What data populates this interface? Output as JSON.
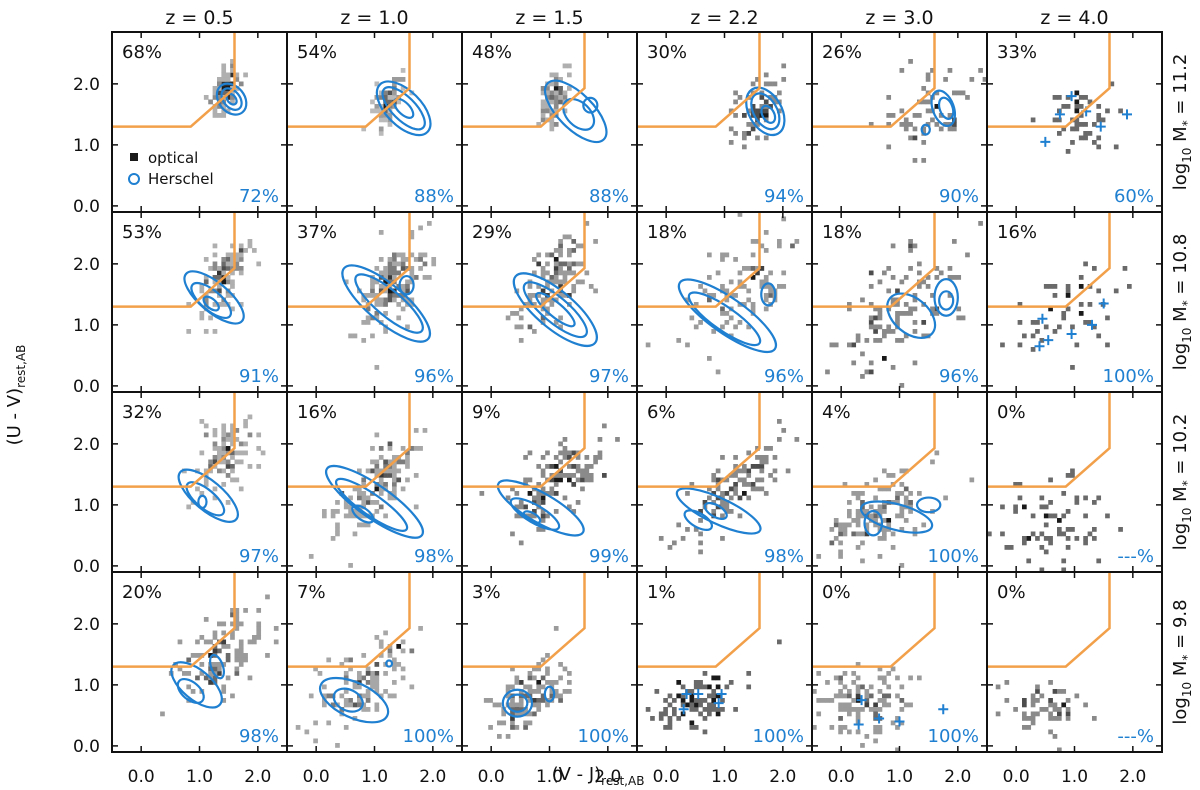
{
  "chart_data": {
    "type": "scatter",
    "layout": "grid",
    "xlabel": "(V - J)",
    "xlabel_sub": "rest,AB",
    "ylabel": "(U - V)",
    "ylabel_sub": "rest,AB",
    "xlim": [
      -0.5,
      2.5
    ],
    "ylim": [
      -0.1,
      2.85
    ],
    "xticks": [
      "0.0",
      "1.0",
      "2.0"
    ],
    "xtick_values": [
      0,
      1,
      2
    ],
    "yticks": [
      "0.0",
      "1.0",
      "2.0"
    ],
    "ytick_values": [
      0,
      1,
      2
    ],
    "columns": [
      "z = 0.5",
      "z = 1.0",
      "z = 1.5",
      "z = 2.2",
      "z = 3.0",
      "z = 4.0"
    ],
    "rows": [
      {
        "prefix": "log",
        "sub": "10",
        "label": " M",
        "label_sub": "*",
        "value": " = 11.2"
      },
      {
        "prefix": "log",
        "sub": "10",
        "label": " M",
        "label_sub": "*",
        "value": " = 10.8"
      },
      {
        "prefix": "log",
        "sub": "10",
        "label": " M",
        "label_sub": "*",
        "value": " = 10.2"
      },
      {
        "prefix": "log",
        "sub": "10",
        "label": " M",
        "label_sub": "*",
        "value": " = 9.8"
      }
    ],
    "legend": {
      "placement": "lower-left of first panel",
      "entries": [
        {
          "marker": "filled-square",
          "label": "optical",
          "color": "#1a1a1a"
        },
        {
          "marker": "open-circle",
          "label": "Herschel",
          "color": "#1f7fd0"
        }
      ]
    },
    "quiescent_region": {
      "color": "#f2a04a",
      "boundary_points": [
        [
          -0.5,
          1.3
        ],
        [
          0.85,
          1.3
        ],
        [
          1.6,
          1.93
        ],
        [
          1.6,
          2.85
        ]
      ]
    },
    "optical_percent": [
      [
        "68%",
        "54%",
        "48%",
        "30%",
        "26%",
        "33%"
      ],
      [
        "53%",
        "37%",
        "29%",
        "18%",
        "18%",
        "16%"
      ],
      [
        "32%",
        "16%",
        "9%",
        "6%",
        "4%",
        "0%"
      ],
      [
        "20%",
        "7%",
        "3%",
        "1%",
        "0%",
        "0%"
      ]
    ],
    "herschel_percent": [
      [
        "72%",
        "88%",
        "88%",
        "94%",
        "90%",
        "60%"
      ],
      [
        "91%",
        "96%",
        "97%",
        "96%",
        "96%",
        "100%"
      ],
      [
        "97%",
        "98%",
        "99%",
        "98%",
        "100%",
        "---%"
      ],
      [
        "98%",
        "100%",
        "100%",
        "100%",
        "100%",
        "---%"
      ]
    ],
    "optical_density": [
      [
        {
          "x": 1.45,
          "y": 1.9,
          "sx": 0.12,
          "sy": 0.2,
          "r": 0.6,
          "n": 50
        },
        {
          "x": 1.35,
          "y": 1.7,
          "sx": 0.25,
          "sy": 0.35,
          "r": 0.6,
          "n": 90
        },
        {
          "x": 1.4,
          "y": 1.75,
          "sx": 0.3,
          "sy": 0.32,
          "r": 0.5,
          "n": 90
        },
        {
          "x": 1.4,
          "y": 1.5,
          "sx": 0.4,
          "sy": 0.35,
          "r": 0.5,
          "n": 110
        },
        {
          "x": 0.85,
          "y": 1.25,
          "sx": 0.45,
          "sy": 0.35,
          "r": 0.3,
          "n": 90
        },
        {
          "x": 1.0,
          "y": 1.4,
          "sx": 0.3,
          "sy": 0.3,
          "r": 0.2,
          "n": 25
        }
      ],
      [
        {
          "x": 1.25,
          "y": 1.75,
          "sx": 0.12,
          "sy": 0.2,
          "r": 0.5,
          "n": 55
        },
        {
          "x": 1.3,
          "y": 1.65,
          "sx": 0.28,
          "sy": 0.38,
          "r": 0.6,
          "n": 140
        },
        {
          "x": 1.0,
          "y": 1.3,
          "sx": 0.4,
          "sy": 0.4,
          "r": 0.7,
          "n": 140
        },
        {
          "x": 0.8,
          "y": 1.05,
          "sx": 0.45,
          "sy": 0.35,
          "r": 0.6,
          "n": 120
        },
        {
          "x": 0.75,
          "y": 0.95,
          "sx": 0.5,
          "sy": 0.5,
          "r": 0.5,
          "n": 110
        },
        {
          "x": 0.55,
          "y": 0.8,
          "sx": 0.3,
          "sy": 0.3,
          "r": 0.3,
          "n": 15
        }
      ],
      [
        {
          "x": 1.1,
          "y": 1.8,
          "sx": 0.12,
          "sy": 0.22,
          "r": 0.5,
          "n": 45
        },
        {
          "x": 1.1,
          "y": 1.7,
          "sx": 0.3,
          "sy": 0.4,
          "r": 0.5,
          "n": 110
        },
        {
          "x": 1.05,
          "y": 1.3,
          "sx": 0.45,
          "sy": 0.4,
          "r": 0.7,
          "n": 130
        },
        {
          "x": 0.6,
          "y": 0.8,
          "sx": 0.35,
          "sy": 0.3,
          "r": 0.6,
          "n": 120
        },
        {
          "x": 0.45,
          "y": 0.7,
          "sx": 0.25,
          "sy": 0.15,
          "r": 0.3,
          "n": 90
        },
        {
          "x": 0.35,
          "y": 0.65,
          "sx": 0.25,
          "sy": 0.2,
          "r": 0.2,
          "n": 70
        }
      ],
      [
        {
          "x": 1.6,
          "y": 1.6,
          "sx": 0.2,
          "sy": 0.25,
          "r": 0.3,
          "n": 50
        },
        {
          "x": 1.15,
          "y": 1.55,
          "sx": 0.5,
          "sy": 0.5,
          "r": 0.6,
          "n": 90
        },
        {
          "x": 1.1,
          "y": 1.2,
          "sx": 0.45,
          "sy": 0.4,
          "r": 0.7,
          "n": 110
        },
        {
          "x": 0.5,
          "y": 0.75,
          "sx": 0.35,
          "sy": 0.25,
          "r": 0.5,
          "n": 90
        },
        {
          "x": 0.35,
          "y": 0.65,
          "sx": 0.25,
          "sy": 0.2,
          "r": 0.3,
          "n": 80
        },
        {
          "x": 0.3,
          "y": 0.6,
          "sx": 0.2,
          "sy": 0.2,
          "r": 0.2,
          "n": 70
        }
      ],
      [
        {
          "x": 1.5,
          "y": 1.5,
          "sx": 0.4,
          "sy": 0.4,
          "r": 0.4,
          "n": 45
        },
        {
          "x": 1.0,
          "y": 1.3,
          "sx": 0.6,
          "sy": 0.5,
          "r": 0.5,
          "n": 110
        },
        {
          "x": 0.6,
          "y": 0.85,
          "sx": 0.45,
          "sy": 0.35,
          "r": 0.3,
          "n": 130
        },
        {
          "x": 0.4,
          "y": 0.7,
          "sx": 0.4,
          "sy": 0.3,
          "r": 0.2,
          "n": 120
        },
        {
          "x": 0.3,
          "y": 0.65,
          "sx": 0.35,
          "sy": 0.25,
          "r": 0.1,
          "n": 100
        },
        {
          "x": 0.25,
          "y": 0.6,
          "sx": 0.3,
          "sy": 0.2,
          "r": 0.1,
          "n": 110
        }
      ],
      [
        {
          "x": 1.2,
          "y": 1.5,
          "sx": 0.3,
          "sy": 0.25,
          "r": 0.2,
          "n": 25
        },
        {
          "x": 0.8,
          "y": 1.1,
          "sx": 0.45,
          "sy": 0.35,
          "r": 0.3,
          "n": 40
        },
        {
          "x": 0.6,
          "y": 0.7,
          "sx": 0.45,
          "sy": 0.35,
          "r": 0.1,
          "n": 70
        },
        {
          "x": 0.5,
          "y": 0.65,
          "sx": 0.35,
          "sy": 0.25,
          "r": 0.1,
          "n": 60
        },
        {
          "x": 0.3,
          "y": 0.5,
          "sx": 0.3,
          "sy": 0.2,
          "r": 0.1,
          "n": 60
        },
        {
          "x": 0.05,
          "y": 0.4,
          "sx": 0.25,
          "sy": 0.2,
          "r": 0.1,
          "n": 70
        }
      ]
    ],
    "herschel_contours": [
      [
        [
          {
            "x": 1.55,
            "y": 1.75,
            "rx": 0.22,
            "ry": 0.28,
            "rot": -40
          },
          {
            "x": 1.55,
            "y": 1.75,
            "rx": 0.14,
            "ry": 0.2,
            "rot": -40
          },
          {
            "x": 1.55,
            "y": 1.75,
            "rx": 0.07,
            "ry": 0.1,
            "rot": -40
          }
        ],
        [
          {
            "x": 1.5,
            "y": 1.6,
            "rx": 0.3,
            "ry": 0.55,
            "rot": -45
          },
          {
            "x": 1.5,
            "y": 1.6,
            "rx": 0.2,
            "ry": 0.45,
            "rot": -45
          },
          {
            "x": 1.5,
            "y": 1.6,
            "rx": 0.1,
            "ry": 0.2,
            "rot": -45
          }
        ],
        [
          {
            "x": 1.45,
            "y": 1.55,
            "rx": 0.3,
            "ry": 0.65,
            "rot": -45
          },
          {
            "x": 1.5,
            "y": 1.5,
            "rx": 0.2,
            "ry": 0.3,
            "rot": -45
          },
          {
            "x": 1.7,
            "y": 1.65,
            "rx": 0.12,
            "ry": 0.12,
            "rot": 0
          }
        ],
        [
          {
            "x": 1.7,
            "y": 1.55,
            "rx": 0.28,
            "ry": 0.42,
            "rot": -30
          },
          {
            "x": 1.7,
            "y": 1.55,
            "rx": 0.2,
            "ry": 0.32,
            "rot": -30
          },
          {
            "x": 1.75,
            "y": 1.5,
            "rx": 0.1,
            "ry": 0.15,
            "rot": -30
          }
        ],
        [
          {
            "x": 1.75,
            "y": 1.6,
            "rx": 0.18,
            "ry": 0.3,
            "rot": -20
          },
          {
            "x": 1.8,
            "y": 1.6,
            "rx": 0.11,
            "ry": 0.18,
            "rot": -20
          },
          {
            "x": 1.45,
            "y": 1.25,
            "rx": 0.07,
            "ry": 0.08,
            "rot": 0
          }
        ],
        []
      ],
      [
        [
          {
            "x": 1.25,
            "y": 1.45,
            "rx": 0.25,
            "ry": 0.6,
            "rot": -50
          },
          {
            "x": 1.2,
            "y": 1.4,
            "rx": 0.17,
            "ry": 0.4,
            "rot": -50
          },
          {
            "x": 1.2,
            "y": 1.35,
            "rx": 0.08,
            "ry": 0.15,
            "rot": -50
          }
        ],
        [
          {
            "x": 1.2,
            "y": 1.35,
            "rx": 0.32,
            "ry": 0.9,
            "rot": -50
          },
          {
            "x": 1.25,
            "y": 1.35,
            "rx": 0.22,
            "ry": 0.7,
            "rot": -50
          },
          {
            "x": 1.55,
            "y": 1.65,
            "rx": 0.12,
            "ry": 0.15,
            "rot": 0
          }
        ],
        [
          {
            "x": 1.1,
            "y": 1.25,
            "rx": 0.32,
            "ry": 0.85,
            "rot": -50
          },
          {
            "x": 1.1,
            "y": 1.25,
            "rx": 0.22,
            "ry": 0.65,
            "rot": -50
          },
          {
            "x": 1.1,
            "y": 1.25,
            "rx": 0.12,
            "ry": 0.4,
            "rot": -50
          }
        ],
        [
          {
            "x": 1.05,
            "y": 1.15,
            "rx": 0.3,
            "ry": 0.95,
            "rot": -55
          },
          {
            "x": 1.0,
            "y": 1.1,
            "rx": 0.2,
            "ry": 0.7,
            "rot": -55
          },
          {
            "x": 1.75,
            "y": 1.5,
            "rx": 0.12,
            "ry": 0.18,
            "rot": 0
          }
        ],
        [
          {
            "x": 1.8,
            "y": 1.45,
            "rx": 0.2,
            "ry": 0.3,
            "rot": 0
          },
          {
            "x": 1.8,
            "y": 1.4,
            "rx": 0.12,
            "ry": 0.15,
            "rot": 0
          },
          {
            "x": 1.2,
            "y": 1.15,
            "rx": 0.3,
            "ry": 0.45,
            "rot": -50
          }
        ],
        []
      ],
      [
        [
          {
            "x": 1.15,
            "y": 1.15,
            "rx": 0.25,
            "ry": 0.6,
            "rot": -50
          },
          {
            "x": 1.1,
            "y": 1.1,
            "rx": 0.16,
            "ry": 0.38,
            "rot": -50
          },
          {
            "x": 1.05,
            "y": 1.05,
            "rx": 0.07,
            "ry": 0.1,
            "rot": 0
          }
        ],
        [
          {
            "x": 1.0,
            "y": 1.05,
            "rx": 0.28,
            "ry": 0.95,
            "rot": -55
          },
          {
            "x": 0.95,
            "y": 1.0,
            "rx": 0.18,
            "ry": 0.7,
            "rot": -55
          },
          {
            "x": 0.8,
            "y": 0.85,
            "rx": 0.1,
            "ry": 0.2,
            "rot": -55
          }
        ],
        [
          {
            "x": 0.85,
            "y": 0.95,
            "rx": 0.25,
            "ry": 0.8,
            "rot": -60
          },
          {
            "x": 0.75,
            "y": 0.85,
            "rx": 0.15,
            "ry": 0.45,
            "rot": -60
          },
          {
            "x": 0.7,
            "y": 0.8,
            "rx": 0.07,
            "ry": 0.15,
            "rot": -60
          }
        ],
        [
          {
            "x": 0.9,
            "y": 0.9,
            "rx": 0.22,
            "ry": 0.75,
            "rot": -65
          },
          {
            "x": 0.55,
            "y": 0.75,
            "rx": 0.12,
            "ry": 0.25,
            "rot": -60
          },
          {
            "x": 0.85,
            "y": 0.9,
            "rx": 0.1,
            "ry": 0.2,
            "rot": -60
          }
        ],
        [
          {
            "x": 0.95,
            "y": 0.8,
            "rx": 0.22,
            "ry": 0.6,
            "rot": -75
          },
          {
            "x": 0.55,
            "y": 0.7,
            "rx": 0.15,
            "ry": 0.2,
            "rot": 0
          },
          {
            "x": 1.5,
            "y": 1.0,
            "rx": 0.2,
            "ry": 0.12,
            "rot": 0
          }
        ],
        []
      ],
      [
        [
          {
            "x": 0.95,
            "y": 1.0,
            "rx": 0.25,
            "ry": 0.5,
            "rot": -50
          },
          {
            "x": 0.85,
            "y": 0.9,
            "rx": 0.15,
            "ry": 0.25,
            "rot": -50
          },
          {
            "x": 1.3,
            "y": 1.3,
            "rx": 0.1,
            "ry": 0.2,
            "rot": -20
          }
        ],
        [
          {
            "x": 0.65,
            "y": 0.75,
            "rx": 0.3,
            "ry": 0.6,
            "rot": -65
          },
          {
            "x": 0.55,
            "y": 0.75,
            "rx": 0.18,
            "ry": 0.25,
            "rot": -65
          },
          {
            "x": 1.25,
            "y": 1.35,
            "rx": 0.05,
            "ry": 0.05,
            "rot": 0
          }
        ],
        [
          {
            "x": 0.45,
            "y": 0.7,
            "rx": 0.25,
            "ry": 0.22,
            "rot": 0
          },
          {
            "x": 0.45,
            "y": 0.7,
            "rx": 0.17,
            "ry": 0.14,
            "rot": 0
          },
          {
            "x": 1.0,
            "y": 0.85,
            "rx": 0.08,
            "ry": 0.12,
            "rot": 0
          }
        ],
        [],
        [],
        []
      ]
    ],
    "herschel_points": [
      [
        [],
        [],
        [],
        [],
        [],
        [
          [
            0.95,
            1.8
          ],
          [
            0.75,
            1.5
          ],
          [
            1.2,
            1.55
          ],
          [
            1.45,
            1.3
          ],
          [
            1.9,
            1.5
          ],
          [
            0.5,
            1.05
          ]
        ]
      ],
      [
        [],
        [],
        [],
        [],
        [],
        [
          [
            1.5,
            1.35
          ],
          [
            1.3,
            1.0
          ],
          [
            0.95,
            0.85
          ],
          [
            0.55,
            0.75
          ],
          [
            0.4,
            0.65
          ],
          [
            0.45,
            1.1
          ]
        ]
      ],
      [
        [],
        [],
        [],
        [],
        [],
        []
      ],
      [
        [],
        [],
        [],
        [
          [
            0.35,
            0.85
          ],
          [
            0.55,
            0.85
          ],
          [
            0.95,
            0.85
          ],
          [
            0.9,
            0.7
          ],
          [
            0.3,
            0.6
          ]
        ],
        [
          [
            0.35,
            0.75
          ],
          [
            0.65,
            0.45
          ],
          [
            1.0,
            0.4
          ],
          [
            1.75,
            0.6
          ],
          [
            0.3,
            0.35
          ]
        ],
        []
      ]
    ]
  }
}
